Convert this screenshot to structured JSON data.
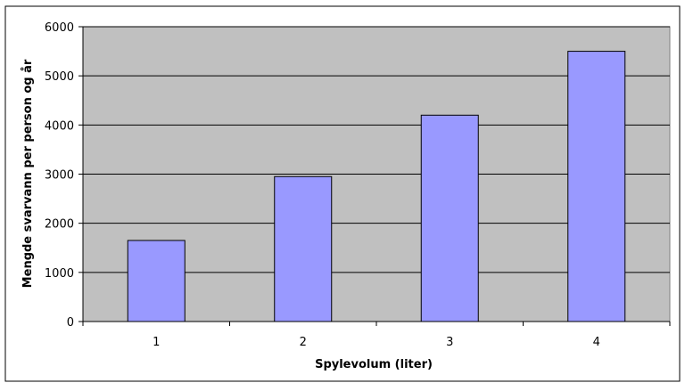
{
  "chart_data": {
    "type": "bar",
    "categories": [
      "1",
      "2",
      "3",
      "4"
    ],
    "values": [
      1650,
      2950,
      4200,
      5500
    ],
    "title": "",
    "xlabel": "Spylevolum (liter)",
    "ylabel": "Mengde svarvann per person og år",
    "ylim": [
      0,
      6000
    ],
    "yticks": [
      "0",
      "1000",
      "2000",
      "3000",
      "4000",
      "5000",
      "6000"
    ],
    "grid": true,
    "legend": "none",
    "colors": {
      "bar": "#9999ff",
      "bar_outline": "#000000",
      "plot_background": "#c0c0c0",
      "gridline": "#000000"
    }
  }
}
